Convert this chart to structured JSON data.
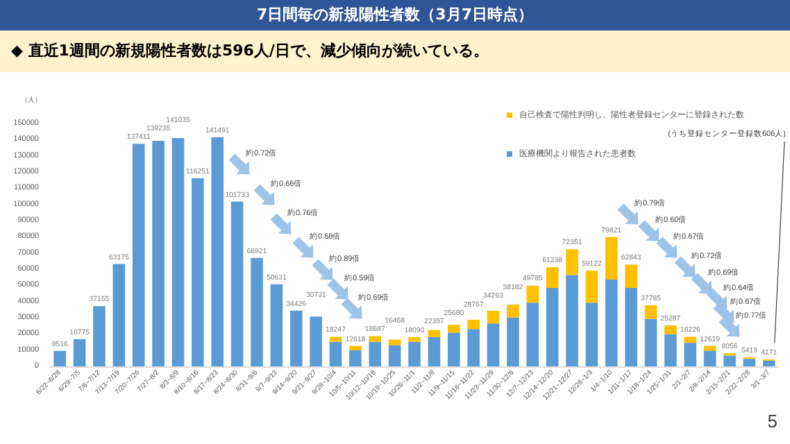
{
  "chart_data": {
    "type": "bar",
    "title": "7日間毎の新規陽性者数（3月7日時点）",
    "subtitle": "◆ 直近1週間の新規陽性者数は596人/日で、減少傾向が続いている。",
    "ylabel": "（人）",
    "categories": [
      "6/22~6/28",
      "6/29~7/5",
      "7/6~7/12",
      "7/13~7/19",
      "7/20~7/26",
      "7/27~8/2",
      "8/3~8/9",
      "8/10~8/16",
      "8/17~8/23",
      "8/24~8/30",
      "8/31~9/6",
      "9/7~9/13",
      "9/14~9/20",
      "9/21~9/27",
      "9/28~10/4",
      "10/5~10/11",
      "10/12~10/18",
      "10/19~10/25",
      "10/26~11/1",
      "11/2~11/8",
      "11/9~11/15",
      "11/16~11/22",
      "11/23~11/29",
      "11/30~12/6",
      "12/7~12/13",
      "12/14~12/20",
      "12/21~12/27",
      "12/28~1/3",
      "1/4~1/10",
      "1/11~1/17",
      "1/18~1/24",
      "1/25~1/31",
      "2/1~2/7",
      "2/8~2/14",
      "2/15~2/21",
      "2/22~2/28",
      "3/1~3/7"
    ],
    "stacked": true,
    "series": [
      {
        "name": "医療機関より報告された患者数",
        "color": "#5b9bd5",
        "values": [
          9516,
          16775,
          37155,
          63175,
          137411,
          139235,
          141035,
          116251,
          141491,
          101733,
          66921,
          50631,
          34426,
          30731,
          15100,
          10000,
          15100,
          13100,
          15100,
          18000,
          20800,
          23000,
          26500,
          30200,
          39300,
          48400,
          56400,
          39300,
          53600,
          48400,
          29300,
          19900,
          14500,
          9700,
          6600,
          4600,
          3500
        ]
      },
      {
        "name": "自己検査で陽性判明し、陽性者登録センターに登録された数",
        "color": "#ffc000",
        "values": [
          null,
          null,
          null,
          null,
          null,
          null,
          null,
          null,
          null,
          null,
          null,
          null,
          null,
          null,
          3147,
          2618,
          3587,
          3368,
          2990,
          4397,
          4880,
          5767,
          7763,
          7982,
          10485,
          12838,
          15951,
          19822,
          26221,
          14443,
          8485,
          5387,
          3726,
          2919,
          1456,
          819,
          671
        ]
      }
    ],
    "totals": [
      "9516",
      "16775",
      "37155",
      "63175",
      "137411",
      "139235",
      "141035",
      "116251",
      "141491",
      "101733",
      "66921",
      "50631",
      "34426",
      "30731",
      "18247",
      "12618",
      "18687",
      "16468",
      "18090",
      "22397",
      "25680",
      "28767",
      "34263",
      "38182",
      "49785",
      "61238",
      "72351",
      "59122",
      "79821",
      "62843",
      "37785",
      "25287",
      "18226",
      "12619",
      "8056",
      "5419",
      "4171"
    ],
    "ylim": [
      0,
      150000
    ],
    "yticks": [
      0,
      10000,
      20000,
      30000,
      40000,
      50000,
      60000,
      70000,
      80000,
      90000,
      100000,
      110000,
      120000,
      130000,
      140000,
      150000
    ],
    "grid": false,
    "legend": "top right",
    "annotations": [
      "約0.72倍",
      "約0.66倍",
      "約0.76倍",
      "約0.68倍",
      "約0.89倍",
      "約0.59倍",
      "約0.69倍",
      "約0.79倍",
      "約0.60倍",
      "約0.67倍",
      "約0.72倍",
      "約0.69倍",
      "約0.64倍",
      "約0.67倍",
      "約0.77倍",
      "(うち登録センター登録数606人)",
      "5"
    ]
  }
}
